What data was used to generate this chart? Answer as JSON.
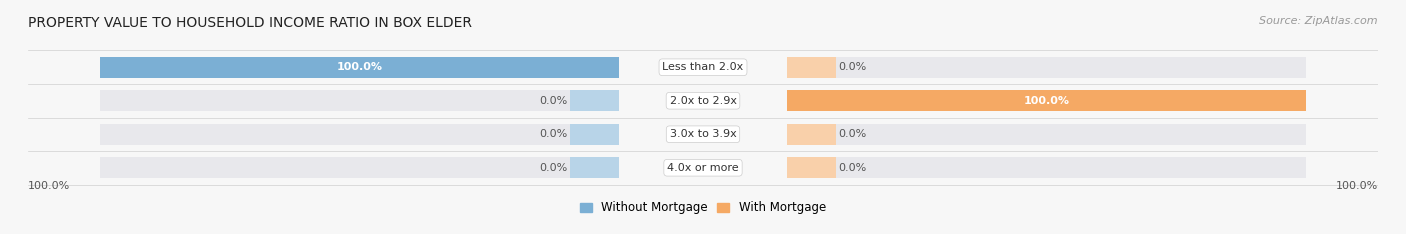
{
  "title": "PROPERTY VALUE TO HOUSEHOLD INCOME RATIO IN BOX ELDER",
  "source": "Source: ZipAtlas.com",
  "categories": [
    "Less than 2.0x",
    "2.0x to 2.9x",
    "3.0x to 3.9x",
    "4.0x or more"
  ],
  "without_mortgage": [
    100.0,
    0.0,
    0.0,
    0.0
  ],
  "with_mortgage": [
    0.0,
    100.0,
    0.0,
    0.0
  ],
  "color_without": "#7bafd4",
  "color_with": "#f5a964",
  "color_without_stub": "#b8d4e8",
  "color_with_stub": "#f9d0aa",
  "bar_height": 0.62,
  "bg_bar_color": "#e8e8ec",
  "title_fontsize": 10,
  "label_fontsize": 8,
  "source_fontsize": 8,
  "legend_fontsize": 8.5
}
